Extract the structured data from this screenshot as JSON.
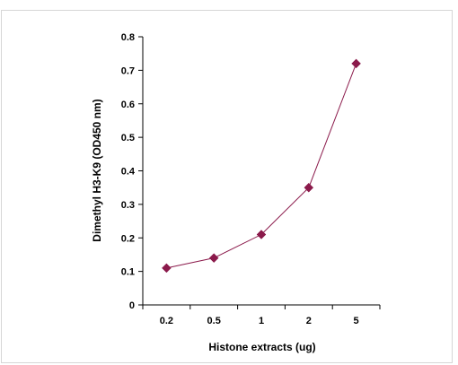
{
  "chart_data": {
    "type": "line",
    "categories": [
      "0.2",
      "0.5",
      "1",
      "2",
      "5"
    ],
    "series": [
      {
        "values": [
          0.11,
          0.14,
          0.21,
          0.35,
          0.72
        ],
        "color": "#8b1a4b",
        "marker": "diamond"
      }
    ],
    "xlabel": "Histone extracts (ug)",
    "ylabel": "Dimethyl H3-K9 (OD450 nm)",
    "ylim": [
      0,
      0.8
    ],
    "yticks": [
      "0",
      "0.1",
      "0.2",
      "0.3",
      "0.4",
      "0.5",
      "0.6",
      "0.7",
      "0.8"
    ],
    "grid": false,
    "legend": "none"
  }
}
